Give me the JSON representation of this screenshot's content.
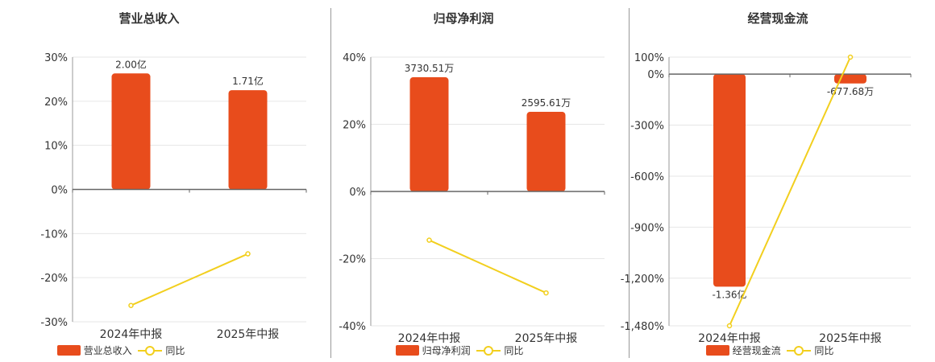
{
  "colors": {
    "bar": "#e84c1c",
    "line": "#f2cf1e",
    "axis": "#666666",
    "grid": "#e6e6e6"
  },
  "chart_data": [
    {
      "type": "bar",
      "title": "营业总收入",
      "categories": [
        "2024年中报",
        "2025年中报"
      ],
      "series": [
        {
          "name": "营业总收入",
          "type": "bar",
          "values": [
            26.3,
            22.5
          ],
          "labels": [
            "2.00亿",
            "1.71亿"
          ]
        },
        {
          "name": "同比",
          "type": "line",
          "values": [
            -26.3,
            -14.6
          ]
        }
      ],
      "ylim": [
        -30,
        30
      ],
      "yticks": [
        30,
        20,
        10,
        0,
        -10,
        -20,
        -30
      ],
      "ytick_labels": [
        "30%",
        "20%",
        "10%",
        "0%",
        "-10%",
        "-20%",
        "-30%"
      ],
      "grid": true,
      "legend_position": "bottom"
    },
    {
      "type": "bar",
      "title": "归母净利润",
      "categories": [
        "2024年中报",
        "2025年中报"
      ],
      "series": [
        {
          "name": "归母净利润",
          "type": "bar",
          "values": [
            34.0,
            23.7
          ],
          "labels": [
            "3730.51万",
            "2595.61万"
          ]
        },
        {
          "name": "同比",
          "type": "line",
          "values": [
            -14.5,
            -30.2
          ]
        }
      ],
      "ylim": [
        -40,
        40
      ],
      "yticks": [
        40,
        20,
        0,
        -20,
        -40
      ],
      "ytick_labels": [
        "40%",
        "20%",
        "0%",
        "-20%",
        "-40%"
      ],
      "grid": true,
      "legend_position": "bottom"
    },
    {
      "type": "bar",
      "title": "经营现金流",
      "categories": [
        "2024年中报",
        "2025年中报"
      ],
      "series": [
        {
          "name": "经营现金流",
          "type": "bar",
          "values": [
            -1250,
            -55
          ],
          "labels": [
            "-1.36亿",
            "-677.68万"
          ]
        },
        {
          "name": "同比",
          "type": "line",
          "values": [
            -1480,
            100
          ]
        }
      ],
      "ylim": [
        -1480,
        100
      ],
      "yticks": [
        100,
        0,
        -300,
        -600,
        -900,
        -1200,
        -1480
      ],
      "ytick_labels": [
        "100%",
        "0%",
        "-300%",
        "-600%",
        "-900%",
        "-1,200%",
        "-1,480%"
      ],
      "grid": true,
      "legend_position": "bottom"
    }
  ]
}
